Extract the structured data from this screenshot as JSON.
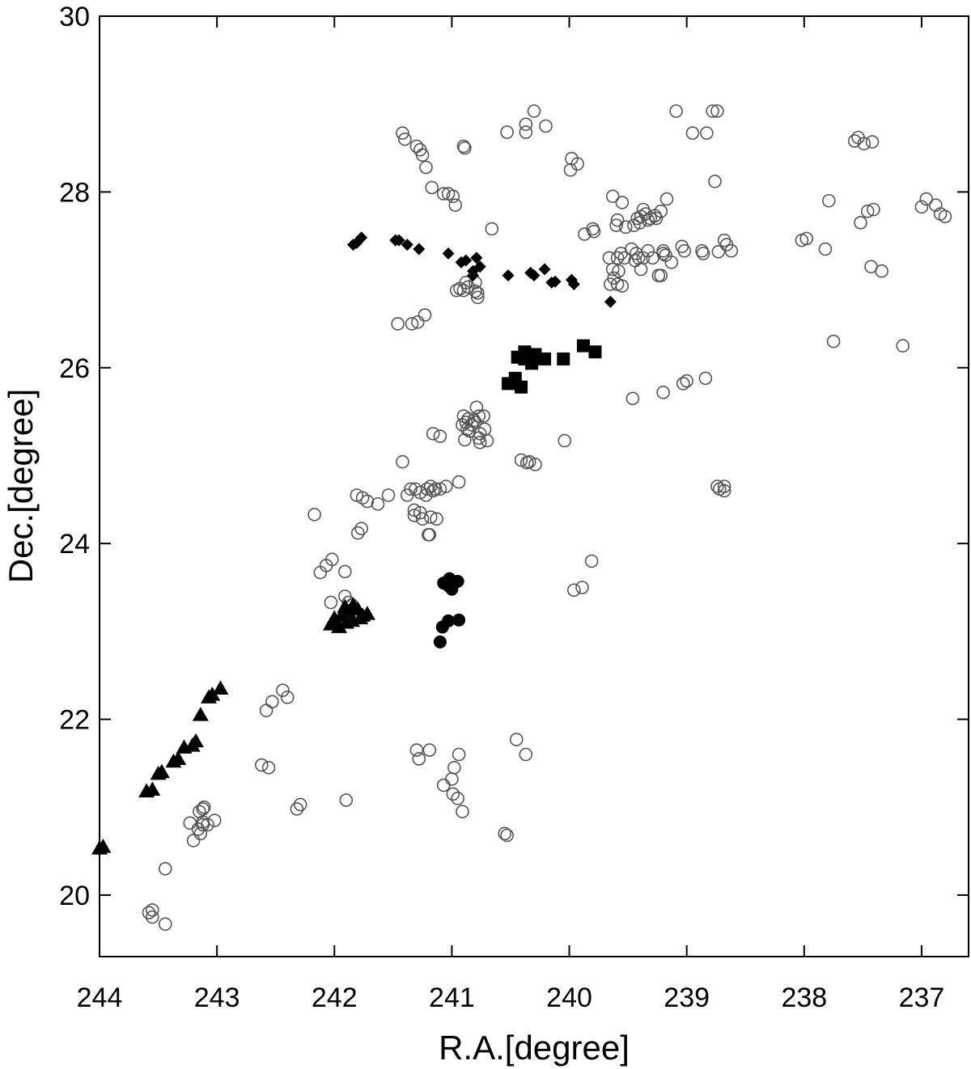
{
  "chart_data": {
    "type": "scatter",
    "title": "",
    "xlabel": "R.A.[degree]",
    "ylabel": "Dec.[degree]",
    "xlim": [
      244,
      236.6
    ],
    "ylim": [
      19.3,
      30
    ],
    "x_reversed": true,
    "xticks": [
      244,
      243,
      242,
      241,
      240,
      239,
      238,
      237
    ],
    "yticks": [
      20,
      22,
      24,
      26,
      28,
      30
    ],
    "grid": false,
    "legend": "none",
    "series": [
      {
        "marker": "open-circle",
        "color": "#555555",
        "points": [
          [
            241.42,
            28.67
          ],
          [
            241.4,
            28.6
          ],
          [
            241.3,
            28.52
          ],
          [
            241.25,
            28.42
          ],
          [
            241.22,
            28.28
          ],
          [
            241.27,
            28.48
          ],
          [
            240.9,
            28.52
          ],
          [
            240.89,
            28.5
          ],
          [
            240.53,
            28.68
          ],
          [
            240.37,
            28.68
          ],
          [
            240.37,
            28.77
          ],
          [
            240.3,
            28.92
          ],
          [
            240.2,
            28.75
          ],
          [
            239.09,
            28.92
          ],
          [
            238.78,
            28.92
          ],
          [
            238.74,
            28.92
          ],
          [
            238.83,
            28.67
          ],
          [
            238.95,
            28.67
          ],
          [
            237.57,
            28.58
          ],
          [
            237.54,
            28.62
          ],
          [
            237.49,
            28.55
          ],
          [
            237.42,
            28.57
          ],
          [
            241.17,
            28.05
          ],
          [
            241.07,
            27.98
          ],
          [
            241.03,
            27.98
          ],
          [
            240.99,
            27.95
          ],
          [
            240.97,
            27.85
          ],
          [
            239.98,
            28.38
          ],
          [
            239.99,
            28.25
          ],
          [
            239.93,
            28.32
          ],
          [
            239.63,
            27.95
          ],
          [
            239.55,
            27.88
          ],
          [
            239.42,
            27.7
          ],
          [
            239.39,
            27.72
          ],
          [
            239.35,
            27.75
          ],
          [
            239.27,
            27.73
          ],
          [
            239.33,
            27.68
          ],
          [
            239.17,
            27.92
          ],
          [
            239.22,
            27.78
          ],
          [
            239.31,
            27.7
          ],
          [
            239.4,
            27.65
          ],
          [
            239.45,
            27.62
          ],
          [
            239.52,
            27.6
          ],
          [
            239.6,
            27.62
          ],
          [
            239.59,
            27.68
          ],
          [
            239.37,
            27.8
          ],
          [
            239.26,
            27.7
          ],
          [
            238.76,
            28.12
          ],
          [
            238.66,
            27.4
          ],
          [
            238.68,
            27.45
          ],
          [
            238.62,
            27.33
          ],
          [
            238.73,
            27.32
          ],
          [
            238.87,
            27.33
          ],
          [
            238.86,
            27.3
          ],
          [
            239.04,
            27.38
          ],
          [
            239.02,
            27.33
          ],
          [
            239.13,
            27.2
          ],
          [
            239.18,
            27.28
          ],
          [
            239.2,
            27.33
          ],
          [
            239.2,
            27.3
          ],
          [
            239.22,
            27.05
          ],
          [
            239.24,
            27.05
          ],
          [
            239.29,
            27.25
          ],
          [
            239.33,
            27.33
          ],
          [
            239.37,
            27.25
          ],
          [
            239.41,
            27.25
          ],
          [
            239.43,
            27.3
          ],
          [
            239.44,
            27.22
          ],
          [
            239.47,
            27.35
          ],
          [
            239.53,
            27.25
          ],
          [
            239.56,
            27.3
          ],
          [
            239.59,
            27.25
          ],
          [
            239.63,
            27.12
          ],
          [
            239.62,
            27.02
          ],
          [
            239.58,
            27.1
          ],
          [
            239.66,
            27.25
          ],
          [
            239.65,
            26.95
          ],
          [
            239.59,
            26.95
          ],
          [
            239.55,
            26.93
          ],
          [
            239.39,
            27.12
          ],
          [
            239.79,
            27.55
          ],
          [
            239.8,
            27.58
          ],
          [
            239.87,
            27.52
          ],
          [
            238.02,
            27.45
          ],
          [
            237.98,
            27.47
          ],
          [
            237.82,
            27.35
          ],
          [
            237.79,
            27.9
          ],
          [
            237.52,
            27.65
          ],
          [
            237.46,
            27.78
          ],
          [
            237.41,
            27.8
          ],
          [
            237.43,
            27.15
          ],
          [
            237.34,
            27.1
          ],
          [
            237.0,
            27.83
          ],
          [
            236.96,
            27.92
          ],
          [
            236.88,
            27.85
          ],
          [
            236.84,
            27.75
          ],
          [
            236.8,
            27.72
          ],
          [
            237.75,
            26.3
          ],
          [
            237.16,
            26.25
          ],
          [
            240.66,
            27.58
          ],
          [
            240.78,
            26.85
          ],
          [
            240.8,
            26.87
          ],
          [
            240.86,
            26.92
          ],
          [
            240.88,
            26.97
          ],
          [
            240.9,
            26.88
          ],
          [
            240.93,
            26.9
          ],
          [
            240.96,
            26.88
          ],
          [
            240.8,
            26.97
          ],
          [
            240.78,
            26.8
          ],
          [
            241.46,
            26.5
          ],
          [
            241.34,
            26.5
          ],
          [
            241.29,
            26.52
          ],
          [
            241.23,
            26.6
          ],
          [
            238.84,
            25.88
          ],
          [
            239.0,
            25.85
          ],
          [
            239.03,
            25.82
          ],
          [
            239.2,
            25.72
          ],
          [
            239.46,
            25.65
          ],
          [
            240.9,
            25.45
          ],
          [
            240.86,
            25.42
          ],
          [
            240.81,
            25.4
          ],
          [
            240.77,
            25.45
          ],
          [
            240.73,
            25.45
          ],
          [
            240.72,
            25.3
          ],
          [
            240.76,
            25.25
          ],
          [
            240.77,
            25.2
          ],
          [
            240.8,
            25.38
          ],
          [
            240.83,
            25.35
          ],
          [
            240.88,
            25.38
          ],
          [
            240.79,
            25.55
          ],
          [
            240.87,
            25.3
          ],
          [
            240.91,
            25.35
          ],
          [
            240.85,
            25.28
          ],
          [
            240.89,
            25.18
          ],
          [
            240.76,
            25.15
          ],
          [
            240.7,
            25.17
          ],
          [
            241.16,
            25.25
          ],
          [
            241.1,
            25.22
          ],
          [
            240.04,
            25.17
          ],
          [
            241.42,
            24.93
          ],
          [
            241.54,
            24.55
          ],
          [
            241.63,
            24.45
          ],
          [
            241.38,
            24.55
          ],
          [
            241.35,
            24.62
          ],
          [
            241.31,
            24.62
          ],
          [
            241.27,
            24.58
          ],
          [
            241.22,
            24.55
          ],
          [
            241.21,
            24.62
          ],
          [
            241.18,
            24.65
          ],
          [
            241.16,
            24.6
          ],
          [
            241.14,
            24.62
          ],
          [
            241.1,
            24.62
          ],
          [
            241.05,
            24.65
          ],
          [
            240.94,
            24.7
          ],
          [
            241.32,
            24.38
          ],
          [
            241.32,
            24.32
          ],
          [
            241.27,
            24.35
          ],
          [
            241.25,
            24.28
          ],
          [
            241.18,
            24.3
          ],
          [
            241.13,
            24.28
          ],
          [
            241.2,
            24.1
          ],
          [
            241.19,
            24.1
          ],
          [
            241.81,
            24.55
          ],
          [
            241.76,
            24.52
          ],
          [
            241.72,
            24.48
          ],
          [
            241.77,
            24.17
          ],
          [
            241.8,
            24.12
          ],
          [
            242.17,
            24.33
          ],
          [
            240.41,
            24.95
          ],
          [
            240.36,
            24.92
          ],
          [
            240.34,
            24.93
          ],
          [
            240.29,
            24.9
          ],
          [
            242.02,
            23.82
          ],
          [
            242.07,
            23.75
          ],
          [
            242.12,
            23.67
          ],
          [
            241.91,
            23.68
          ],
          [
            241.91,
            23.4
          ],
          [
            242.03,
            23.33
          ],
          [
            241.88,
            23.33
          ],
          [
            241.85,
            23.3
          ],
          [
            239.81,
            23.8
          ],
          [
            239.89,
            23.5
          ],
          [
            239.96,
            23.47
          ],
          [
            238.74,
            24.65
          ],
          [
            238.68,
            24.65
          ],
          [
            238.68,
            24.6
          ],
          [
            238.72,
            24.62
          ],
          [
            242.44,
            22.33
          ],
          [
            242.4,
            22.25
          ],
          [
            242.53,
            22.2
          ],
          [
            242.58,
            22.1
          ],
          [
            242.62,
            21.48
          ],
          [
            242.56,
            21.45
          ],
          [
            241.3,
            21.65
          ],
          [
            241.28,
            21.55
          ],
          [
            241.19,
            21.65
          ],
          [
            240.45,
            21.77
          ],
          [
            240.37,
            21.6
          ],
          [
            240.94,
            21.6
          ],
          [
            240.98,
            21.45
          ],
          [
            241.0,
            21.32
          ],
          [
            241.07,
            21.25
          ],
          [
            240.99,
            21.15
          ],
          [
            240.95,
            21.1
          ],
          [
            240.91,
            20.95
          ],
          [
            242.32,
            20.98
          ],
          [
            242.29,
            21.03
          ],
          [
            241.9,
            21.08
          ],
          [
            240.55,
            20.7
          ],
          [
            240.53,
            20.68
          ],
          [
            243.12,
            20.98
          ],
          [
            243.15,
            20.95
          ],
          [
            243.11,
            21.0
          ],
          [
            243.08,
            20.8
          ],
          [
            243.12,
            20.83
          ],
          [
            243.16,
            20.75
          ],
          [
            243.14,
            20.7
          ],
          [
            243.2,
            20.62
          ],
          [
            243.23,
            20.82
          ],
          [
            243.02,
            20.85
          ],
          [
            243.12,
            20.8
          ],
          [
            243.44,
            20.3
          ],
          [
            243.58,
            19.8
          ],
          [
            243.55,
            19.83
          ],
          [
            243.55,
            19.75
          ],
          [
            243.44,
            19.67
          ]
        ]
      },
      {
        "marker": "filled-diamond",
        "color": "#000000",
        "points": [
          [
            241.84,
            27.4
          ],
          [
            241.81,
            27.42
          ],
          [
            241.77,
            27.48
          ],
          [
            241.48,
            27.45
          ],
          [
            241.45,
            27.45
          ],
          [
            241.38,
            27.4
          ],
          [
            241.28,
            27.35
          ],
          [
            241.03,
            27.3
          ],
          [
            240.92,
            27.2
          ],
          [
            240.88,
            27.22
          ],
          [
            240.79,
            27.25
          ],
          [
            240.76,
            27.15
          ],
          [
            240.82,
            27.1
          ],
          [
            240.82,
            27.05
          ],
          [
            240.52,
            27.05
          ],
          [
            240.33,
            27.08
          ],
          [
            240.3,
            27.05
          ],
          [
            240.21,
            27.12
          ],
          [
            240.15,
            26.97
          ],
          [
            240.12,
            26.98
          ],
          [
            239.98,
            27.0
          ],
          [
            239.96,
            26.95
          ],
          [
            239.65,
            26.75
          ]
        ]
      },
      {
        "marker": "filled-square",
        "color": "#000000",
        "points": [
          [
            240.44,
            26.12
          ],
          [
            240.38,
            26.1
          ],
          [
            240.35,
            26.15
          ],
          [
            240.29,
            26.15
          ],
          [
            240.21,
            26.1
          ],
          [
            240.32,
            26.05
          ],
          [
            240.33,
            26.1
          ],
          [
            240.38,
            26.18
          ],
          [
            240.05,
            26.1
          ],
          [
            239.88,
            26.25
          ],
          [
            239.78,
            26.18
          ],
          [
            240.52,
            25.82
          ],
          [
            240.41,
            25.78
          ],
          [
            240.46,
            25.88
          ]
        ]
      },
      {
        "marker": "filled-circle",
        "color": "#000000",
        "points": [
          [
            241.07,
            23.55
          ],
          [
            241.02,
            23.6
          ],
          [
            240.95,
            23.57
          ],
          [
            241.0,
            23.48
          ],
          [
            241.03,
            23.52
          ],
          [
            240.98,
            23.55
          ],
          [
            241.03,
            23.12
          ],
          [
            241.08,
            23.05
          ],
          [
            240.94,
            23.13
          ],
          [
            241.1,
            22.88
          ]
        ]
      },
      {
        "marker": "filled-triangle",
        "color": "#000000",
        "points": [
          [
            242.03,
            23.08
          ],
          [
            241.99,
            23.12
          ],
          [
            241.94,
            23.18
          ],
          [
            241.91,
            23.28
          ],
          [
            241.88,
            23.22
          ],
          [
            241.85,
            23.12
          ],
          [
            241.8,
            23.25
          ],
          [
            241.76,
            23.18
          ],
          [
            241.72,
            23.2
          ],
          [
            241.9,
            23.1
          ],
          [
            241.96,
            23.05
          ],
          [
            242.0,
            23.15
          ],
          [
            241.84,
            23.3
          ],
          [
            241.78,
            23.15
          ],
          [
            242.97,
            22.35
          ],
          [
            243.04,
            22.28
          ],
          [
            243.07,
            22.25
          ],
          [
            243.14,
            22.05
          ],
          [
            243.18,
            21.75
          ],
          [
            243.21,
            21.7
          ],
          [
            243.28,
            21.68
          ],
          [
            243.33,
            21.55
          ],
          [
            243.37,
            21.52
          ],
          [
            243.47,
            21.4
          ],
          [
            243.5,
            21.38
          ],
          [
            243.55,
            21.2
          ],
          [
            243.6,
            21.18
          ],
          [
            243.97,
            20.55
          ],
          [
            244.0,
            20.53
          ]
        ]
      }
    ]
  }
}
